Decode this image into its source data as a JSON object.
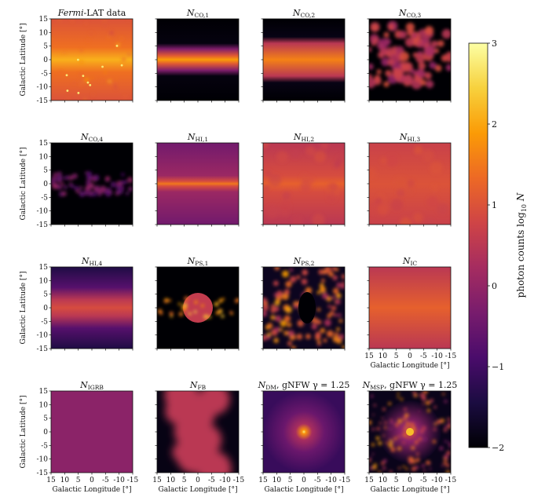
{
  "chart_data": {
    "type": "heatmap",
    "panels": [
      {
        "main": "Fermi-LAT data",
        "italic_part": "Fermi",
        "rest": "-LAT data",
        "sub": "",
        "after": "",
        "pattern": "data",
        "ylabel": "Galactic Latitude [°]",
        "xlabel": "",
        "show_yticks": true,
        "show_xticks": false
      },
      {
        "main": "N",
        "sub": "CO,1",
        "after": "",
        "pattern": "co1",
        "ylabel": "",
        "xlabel": "",
        "show_yticks": false,
        "show_xticks": false
      },
      {
        "main": "N",
        "sub": "CO,2",
        "after": "",
        "pattern": "co2",
        "ylabel": "",
        "xlabel": "",
        "show_yticks": false,
        "show_xticks": false
      },
      {
        "main": "N",
        "sub": "CO,3",
        "after": "",
        "pattern": "co3",
        "ylabel": "",
        "xlabel": "",
        "show_yticks": false,
        "show_xticks": false
      },
      {
        "main": "N",
        "sub": "CO,4",
        "after": "",
        "pattern": "co4",
        "ylabel": "Galactic Latitude [°]",
        "xlabel": "",
        "show_yticks": true,
        "show_xticks": false
      },
      {
        "main": "N",
        "sub": "HI,1",
        "after": "",
        "pattern": "hi1",
        "ylabel": "",
        "xlabel": "",
        "show_yticks": false,
        "show_xticks": false
      },
      {
        "main": "N",
        "sub": "HI,2",
        "after": "",
        "pattern": "hi2",
        "ylabel": "",
        "xlabel": "",
        "show_yticks": false,
        "show_xticks": false
      },
      {
        "main": "N",
        "sub": "HI,3",
        "after": "",
        "pattern": "hi3",
        "ylabel": "",
        "xlabel": "",
        "show_yticks": false,
        "show_xticks": false
      },
      {
        "main": "N",
        "sub": "HI,4",
        "after": "",
        "pattern": "hi4",
        "ylabel": "Galactic Latitude [°]",
        "xlabel": "",
        "show_yticks": true,
        "show_xticks": false
      },
      {
        "main": "N",
        "sub": "PS,1",
        "after": "",
        "pattern": "ps1",
        "ylabel": "",
        "xlabel": "",
        "show_yticks": false,
        "show_xticks": false
      },
      {
        "main": "N",
        "sub": "PS,2",
        "after": "",
        "pattern": "ps2",
        "ylabel": "",
        "xlabel": "",
        "show_yticks": false,
        "show_xticks": false
      },
      {
        "main": "N",
        "sub": "IC",
        "after": "",
        "pattern": "ic",
        "ylabel": "",
        "xlabel": "Galactic Longitude [°]",
        "show_yticks": false,
        "show_xticks": true
      },
      {
        "main": "N",
        "sub": "IGRB",
        "after": "",
        "pattern": "igrb",
        "ylabel": "Galactic Latitude [°]",
        "xlabel": "Galactic Longitude [°]",
        "show_yticks": true,
        "show_xticks": true
      },
      {
        "main": "N",
        "sub": "FB",
        "after": "",
        "pattern": "fb",
        "ylabel": "",
        "xlabel": "Galactic Longitude [°]",
        "show_yticks": false,
        "show_xticks": true
      },
      {
        "main": "N",
        "sub": "DM",
        "after": ", gNFW γ = 1.25",
        "pattern": "dm",
        "ylabel": "",
        "xlabel": "Galactic Longitude [°]",
        "show_yticks": false,
        "show_xticks": true
      },
      {
        "main": "N",
        "sub": "MSP",
        "after": ", gNFW γ = 1.25",
        "pattern": "msp",
        "ylabel": "",
        "xlabel": "Galactic Longitude [°]",
        "show_yticks": false,
        "show_xticks": true
      }
    ],
    "x_range": [
      15,
      -15
    ],
    "y_range": [
      -15,
      15
    ],
    "x_ticks": [
      "15",
      "10",
      "5",
      "0",
      "-5",
      "-10",
      "-15"
    ],
    "y_ticks": [
      "15",
      "10",
      "5",
      "0",
      "-5",
      "-10",
      "-15"
    ],
    "colorbar": {
      "label_prefix": "photon counts  log",
      "label_sub": "10",
      "label_var": "N",
      "range": [
        -2,
        3
      ],
      "ticks": [
        "3",
        "2",
        "1",
        "0",
        "−1",
        "−2"
      ],
      "colormap": "inferno",
      "stops": [
        "#000004",
        "#1b0c41",
        "#4a0c6b",
        "#781c6d",
        "#a52c60",
        "#cf4446",
        "#ed6925",
        "#fb9b06",
        "#f7d13d",
        "#fcffa4"
      ]
    }
  }
}
